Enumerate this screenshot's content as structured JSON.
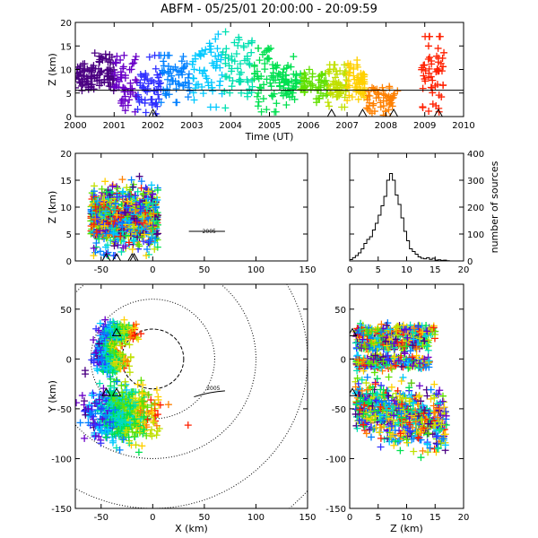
{
  "title": "ABFM - 05/25/01 20:00:00 - 20:09:59",
  "chart_data": [
    {
      "id": "time-height",
      "type": "scatter",
      "xlabel": "Time (UT)",
      "ylabel": "Z (km)",
      "xlim": [
        2000,
        2010
      ],
      "ylim": [
        0,
        20
      ],
      "xticks": [
        "2000",
        "2001",
        "2002",
        "2003",
        "2004",
        "2005",
        "2006",
        "2007",
        "2008",
        "2009",
        "2010"
      ],
      "yticks": [
        "0",
        "5",
        "10",
        "15",
        "20"
      ],
      "reference_line_y": 5.6,
      "station_triangles_x": [
        2002.0,
        2006.6,
        2007.4,
        2008.2,
        2009.35
      ],
      "color_scale": "rainbow by time (purple 2000 → red 2009.5)",
      "clusters": [
        {
          "x_start": 2000.0,
          "x_end": 2000.5,
          "z_min": 5.5,
          "z_max": 12
        },
        {
          "x_start": 2000.5,
          "x_end": 2001.0,
          "z_min": 5.5,
          "z_max": 13.5
        },
        {
          "x_start": 2001.0,
          "x_end": 2001.6,
          "z_min": 1,
          "z_max": 13
        },
        {
          "x_start": 2001.6,
          "x_end": 2002.2,
          "z_min": 0,
          "z_max": 13
        },
        {
          "x_start": 2002.2,
          "x_end": 2003.0,
          "z_min": 3,
          "z_max": 13
        },
        {
          "x_start": 2003.0,
          "x_end": 2003.8,
          "z_min": 2,
          "z_max": 17.5
        },
        {
          "x_start": 2003.8,
          "x_end": 2004.6,
          "z_min": 1,
          "z_max": 18
        },
        {
          "x_start": 2004.6,
          "x_end": 2005.2,
          "z_min": 1,
          "z_max": 14.5
        },
        {
          "x_start": 2005.2,
          "x_end": 2005.8,
          "z_min": 2,
          "z_max": 13
        },
        {
          "x_start": 2005.8,
          "x_end": 2006.5,
          "z_min": 3,
          "z_max": 10
        },
        {
          "x_start": 2006.5,
          "x_end": 2007.0,
          "z_min": 2,
          "z_max": 11
        },
        {
          "x_start": 2007.0,
          "x_end": 2007.5,
          "z_min": 3,
          "z_max": 12
        },
        {
          "x_start": 2007.5,
          "x_end": 2008.3,
          "z_min": 0,
          "z_max": 7
        },
        {
          "x_start": 2008.9,
          "x_end": 2009.5,
          "z_min": 1,
          "z_max": 17
        }
      ]
    },
    {
      "id": "x-z",
      "type": "scatter",
      "xlabel": "",
      "ylabel": "Z (km)",
      "xlim": [
        -75,
        150
      ],
      "ylim": [
        0,
        20
      ],
      "xticks": [
        "-50",
        "0",
        "50",
        "100",
        "150"
      ],
      "yticks": [
        "0",
        "5",
        "10",
        "15",
        "20"
      ],
      "station_triangles_x": [
        -45,
        -35,
        -20,
        -18
      ],
      "source_extent_x": [
        -60,
        5
      ],
      "source_extent_z": [
        1,
        17
      ],
      "annotation": "2005"
    },
    {
      "id": "height-histogram",
      "type": "line",
      "xlabel": "",
      "ylabel": "number of sources",
      "xlim": [
        0,
        20
      ],
      "ylim": [
        0,
        400
      ],
      "xticks": [
        "0",
        "5",
        "10",
        "15",
        "20"
      ],
      "yticks": [
        "0",
        "100",
        "200",
        "300",
        "400"
      ],
      "x": [
        0.5,
        1.0,
        1.5,
        2.0,
        2.5,
        3.0,
        3.5,
        4.0,
        4.5,
        5.0,
        5.5,
        6.0,
        6.5,
        7.0,
        7.5,
        8.0,
        8.5,
        9.0,
        9.5,
        10.0,
        10.5,
        11.0,
        11.5,
        12.0,
        12.5,
        13.0,
        13.5,
        14.0,
        14.5,
        15.0,
        15.5,
        16.0,
        16.5,
        17.0,
        17.5
      ],
      "y": [
        5,
        12,
        20,
        30,
        45,
        65,
        80,
        90,
        115,
        140,
        170,
        205,
        240,
        300,
        325,
        300,
        245,
        210,
        160,
        110,
        75,
        45,
        35,
        25,
        15,
        10,
        8,
        12,
        6,
        10,
        3,
        4,
        2,
        3,
        1
      ]
    },
    {
      "id": "plan-view",
      "type": "scatter",
      "xlabel": "X (km)",
      "ylabel": "Y (km)",
      "xlim": [
        -75,
        150
      ],
      "ylim": [
        -150,
        75
      ],
      "xticks": [
        "-50",
        "0",
        "50",
        "100",
        "150"
      ],
      "yticks": [
        "-150",
        "-100",
        "-50",
        "0",
        "50"
      ],
      "range_rings_km": [
        30,
        60,
        100,
        150,
        200
      ],
      "range_ring_center": [
        0,
        0
      ],
      "station_triangles": [
        [
          -35,
          25
        ],
        [
          -35,
          -35
        ],
        [
          -45,
          -35
        ]
      ],
      "source_clusters": [
        {
          "x_center": -35,
          "y_center": 25,
          "spread_x": 15,
          "spread_y": 10
        },
        {
          "x_center": -45,
          "y_center": 10,
          "spread_x": 8,
          "spread_y": 8
        },
        {
          "x_center": -40,
          "y_center": -3,
          "spread_x": 15,
          "spread_y": 10
        },
        {
          "x_center": -30,
          "y_center": -55,
          "spread_x": 30,
          "spread_y": 25
        }
      ],
      "annotation": "2005"
    },
    {
      "id": "z-y",
      "type": "scatter",
      "xlabel": "Z (km)",
      "ylabel": "",
      "xlim": [
        0,
        20
      ],
      "ylim": [
        -150,
        75
      ],
      "xticks": [
        "0",
        "5",
        "10",
        "15",
        "20"
      ],
      "yticks": [
        "-150",
        "-100",
        "-50",
        "0",
        "50"
      ],
      "station_triangles": [
        [
          0,
          25
        ],
        [
          0,
          -35
        ]
      ],
      "source_bands_y": [
        {
          "y_center": 27,
          "z_min": 1,
          "z_max": 15
        },
        {
          "y_center": 15,
          "z_min": 1,
          "z_max": 14
        },
        {
          "y_center": -3,
          "z_min": 1,
          "z_max": 14
        },
        {
          "y_center": -55,
          "z_min": 1,
          "z_max": 17
        }
      ]
    }
  ],
  "colors": {
    "rainbow": [
      "#4b0082",
      "#6a00c8",
      "#3030ff",
      "#0080ff",
      "#00c8ff",
      "#00e0b0",
      "#00e050",
      "#60e000",
      "#c0e000",
      "#ffd000",
      "#ff8000",
      "#ff2000"
    ],
    "axis": "#000000",
    "dotted_rings": "#000000"
  }
}
